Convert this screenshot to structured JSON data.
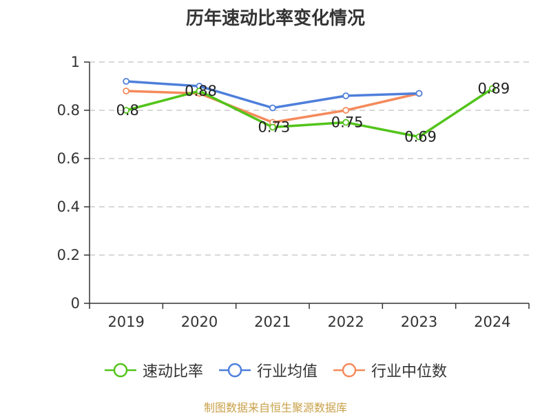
{
  "chart_data": {
    "type": "line",
    "title": "历年速动比率变化情况",
    "categories": [
      "2019",
      "2020",
      "2021",
      "2022",
      "2023",
      "2024"
    ],
    "ylim": [
      0,
      1
    ],
    "yticks": [
      "0",
      "0.2",
      "0.4",
      "0.6",
      "0.8",
      "1"
    ],
    "ytick_values": [
      0,
      0.2,
      0.4,
      0.6,
      0.8,
      1
    ],
    "grid": true,
    "legend_position": "bottom",
    "series": [
      {
        "name": "速动比率",
        "color": "#52c41a",
        "values": [
          0.8,
          0.88,
          0.73,
          0.75,
          0.69,
          0.89
        ],
        "labels": [
          "0.8",
          "0.88",
          "0.73",
          "0.75",
          "0.69",
          "0.89"
        ],
        "show_labels": true
      },
      {
        "name": "行业均值",
        "color": "#4e7fdb",
        "values": [
          0.92,
          0.9,
          0.81,
          0.86,
          0.87,
          null
        ],
        "show_labels": false
      },
      {
        "name": "行业中位数",
        "color": "#f58a5b",
        "values": [
          0.88,
          0.87,
          0.75,
          0.8,
          0.87,
          null
        ],
        "show_labels": false
      }
    ]
  },
  "source_note": "制图数据来自恒生聚源数据库"
}
